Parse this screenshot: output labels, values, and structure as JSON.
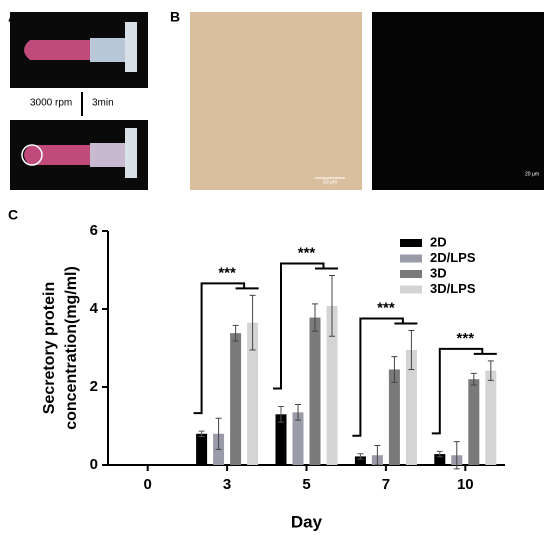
{
  "panels": {
    "a": {
      "label": "A",
      "speed": "3000 rpm",
      "time": "3min"
    },
    "b": {
      "label": "B",
      "scale_left": "50 μm",
      "scale_right": "20 μm"
    },
    "c": {
      "label": "C"
    }
  },
  "chart_data": {
    "type": "bar",
    "x_label": "Day",
    "y_label_lines": [
      "Secretory protein",
      "concentration(mg/ml)"
    ],
    "categories": [
      "0",
      "3",
      "5",
      "7",
      "10"
    ],
    "series": [
      {
        "name": "2D",
        "color": "#000000",
        "values": [
          null,
          0.8,
          1.3,
          0.22,
          0.28
        ],
        "errors": [
          null,
          0.07,
          0.2,
          0.07,
          0.07
        ]
      },
      {
        "name": "2D/LPS",
        "color": "#9a9aa8",
        "values": [
          null,
          0.8,
          1.35,
          0.25,
          0.25
        ],
        "errors": [
          null,
          0.4,
          0.2,
          0.25,
          0.35
        ]
      },
      {
        "name": "3D",
        "color": "#7a7a7a",
        "values": [
          null,
          3.38,
          3.78,
          2.45,
          2.2
        ],
        "errors": [
          null,
          0.2,
          0.35,
          0.33,
          0.15
        ]
      },
      {
        "name": "3D/LPS",
        "color": "#d4d4d4",
        "values": [
          null,
          3.65,
          4.08,
          2.95,
          2.42
        ],
        "errors": [
          null,
          0.7,
          0.78,
          0.5,
          0.25
        ]
      }
    ],
    "annotations": [
      {
        "x": "3",
        "text": "***"
      },
      {
        "x": "5",
        "text": "***"
      },
      {
        "x": "7",
        "text": "***"
      },
      {
        "x": "10",
        "text": "***"
      }
    ],
    "ylim": [
      0,
      6
    ],
    "yticks": [
      0,
      2,
      4,
      6
    ],
    "legend": "top-right"
  }
}
